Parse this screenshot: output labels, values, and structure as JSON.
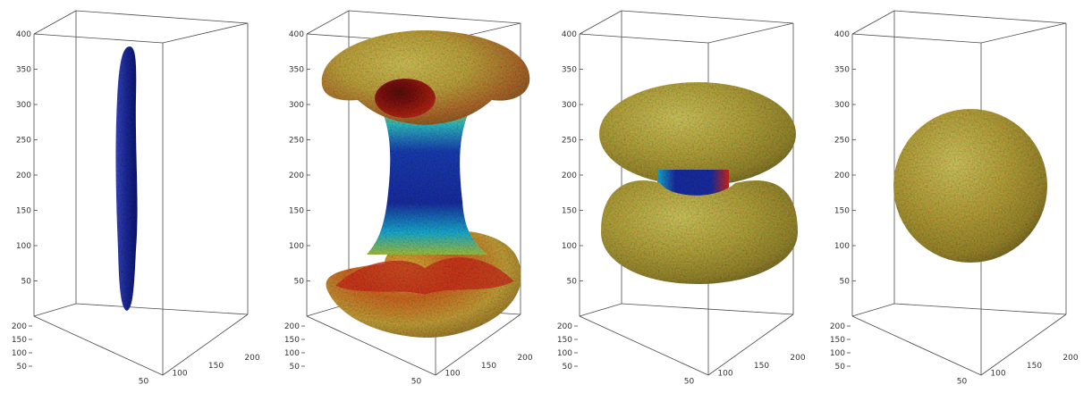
{
  "chart_data": {
    "type": "3d-isosurface",
    "panels": [
      {
        "shape": "elongated-column",
        "color": "#1c2a9e"
      },
      {
        "shape": "hourglass",
        "color_scale": [
          "#1a2fa8",
          "#19b2d8",
          "#c9c23a",
          "#d9261c",
          "#7a0f0a"
        ]
      },
      {
        "shape": "double-lobe",
        "color_scale": [
          "#1a2fa8",
          "#19b2d8",
          "#c9c23a",
          "#d9261c"
        ]
      },
      {
        "shape": "sphere",
        "color_scale": [
          "#b4a03a",
          "#c9c23a",
          "#19b2d8"
        ]
      }
    ],
    "axes": {
      "z": {
        "ticks": [
          "50",
          "100",
          "150",
          "200",
          "250",
          "300",
          "350",
          "400"
        ],
        "range": [
          0,
          400
        ]
      },
      "x": {
        "ticks": [
          "50",
          "100",
          "150",
          "200"
        ],
        "range": [
          0,
          200
        ]
      },
      "y": {
        "ticks": [
          "50",
          "100",
          "150",
          "200"
        ],
        "range": [
          0,
          200
        ]
      }
    },
    "title": "",
    "xlabel": "",
    "ylabel": "",
    "zlabel": "",
    "grid": false
  }
}
